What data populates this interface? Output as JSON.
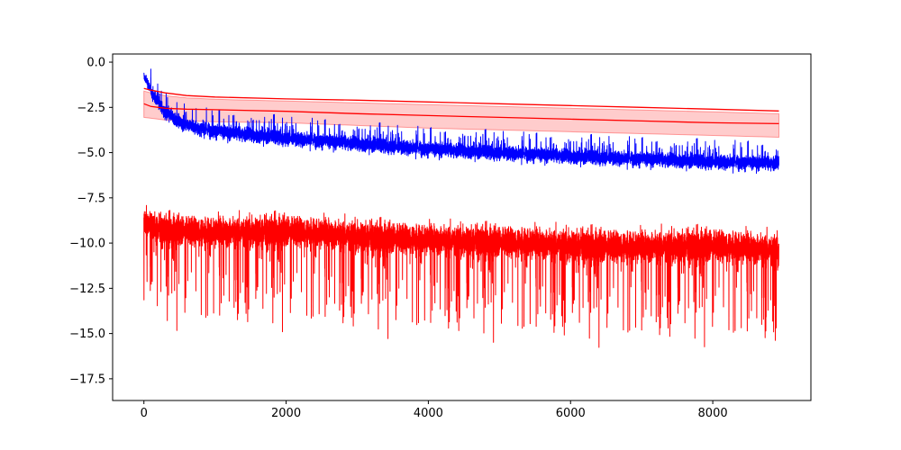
{
  "chart_data": {
    "type": "line",
    "title": "",
    "xlabel": "",
    "ylabel": "",
    "xlim": [
      -440,
      9380
    ],
    "ylim": [
      -18.7,
      0.45
    ],
    "x_ticks": [
      0,
      2000,
      4000,
      6000,
      8000
    ],
    "x_tick_labels": [
      "0",
      "2000",
      "4000",
      "6000",
      "8000"
    ],
    "y_ticks": [
      0.0,
      -2.5,
      -5.0,
      -7.5,
      -10.0,
      -12.5,
      -15.0,
      -17.5
    ],
    "y_tick_labels": [
      "0.0",
      "−2.5",
      "−5.0",
      "−7.5",
      "−10.0",
      "−12.5",
      "−15.0",
      "−17.5"
    ],
    "grid": false,
    "legend": "none",
    "n_points": 8930,
    "series": [
      {
        "color": "#0000ff",
        "style": "noisy",
        "x": [
          0,
          50,
          100,
          200,
          300,
          500,
          800,
          1200,
          2000,
          3000,
          4000,
          5000,
          6000,
          7000,
          8000,
          8930
        ],
        "values": [
          -0.8,
          -1.1,
          -1.6,
          -2.2,
          -2.8,
          -3.3,
          -3.7,
          -3.9,
          -4.2,
          -4.5,
          -4.8,
          -5.0,
          -5.2,
          -5.35,
          -5.5,
          -5.6
        ],
        "spread": [
          0.25,
          0.3,
          0.35,
          0.4,
          0.45,
          0.45,
          0.45,
          0.45,
          0.45,
          0.45,
          0.45,
          0.45,
          0.45,
          0.45,
          0.45,
          0.45
        ]
      },
      {
        "color": "#ff0000",
        "style": "noisy",
        "x": [
          0,
          200,
          1000,
          2000,
          3000,
          4000,
          5000,
          6000,
          7000,
          8000,
          8930
        ],
        "values": [
          -8.7,
          -9.2,
          -9.4,
          -9.3,
          -9.6,
          -9.8,
          -9.9,
          -10.1,
          -10.2,
          -10.1,
          -10.4
        ],
        "spread": [
          0.8,
          0.9,
          0.95,
          0.95,
          0.95,
          0.95,
          0.95,
          1.0,
          1.0,
          1.0,
          1.0
        ]
      },
      {
        "color": "#ff0000",
        "style": "smooth",
        "x": [
          0,
          100,
          300,
          600,
          1000,
          2000,
          3000,
          4000,
          5000,
          6000,
          7000,
          8000,
          8930
        ],
        "values": [
          -1.45,
          -1.55,
          -1.7,
          -1.85,
          -1.93,
          -2.03,
          -2.1,
          -2.2,
          -2.3,
          -2.4,
          -2.5,
          -2.6,
          -2.7
        ]
      },
      {
        "color": "#ff0000",
        "style": "band_center",
        "x": [
          0,
          100,
          300,
          600,
          1000,
          2000,
          3000,
          4000,
          5000,
          6000,
          7000,
          8000,
          8930
        ],
        "values": [
          -2.3,
          -2.45,
          -2.55,
          -2.6,
          -2.63,
          -2.72,
          -2.85,
          -2.95,
          -3.05,
          -3.15,
          -3.25,
          -3.35,
          -3.4
        ]
      }
    ],
    "band": {
      "color": "#ff0000",
      "opacity": 0.2,
      "x": [
        0,
        100,
        300,
        600,
        1000,
        2000,
        3000,
        4000,
        5000,
        6000,
        7000,
        8000,
        8930
      ],
      "upper": [
        -1.6,
        -1.7,
        -1.85,
        -1.97,
        -2.05,
        -2.15,
        -2.25,
        -2.35,
        -2.45,
        -2.55,
        -2.65,
        -2.75,
        -2.85
      ],
      "lower": [
        -3.05,
        -3.1,
        -3.2,
        -3.25,
        -3.3,
        -3.35,
        -3.5,
        -3.65,
        -3.75,
        -3.85,
        -3.95,
        -4.05,
        -4.15
      ]
    }
  }
}
